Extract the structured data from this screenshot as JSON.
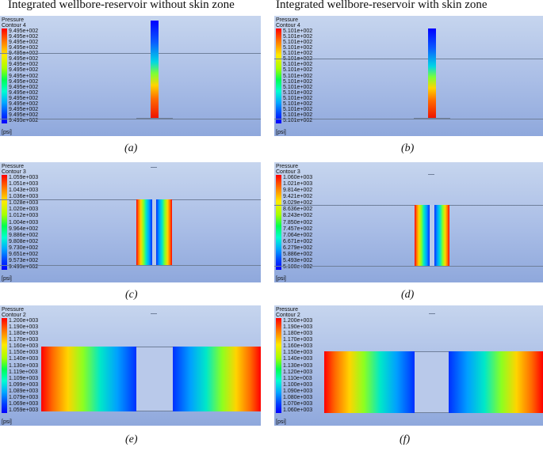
{
  "columns": [
    "Integrated wellbore-reservoir without skin zone",
    "Integrated wellbore-reservoir with skin zone"
  ],
  "panels": [
    {
      "caption": "(a)",
      "title": "Pressure\nContour 4",
      "unit": "[psi]",
      "labels": [
        "9.495e+002",
        "9.495e+002",
        "9.495e+002",
        "9.495e+002",
        "9.495e+002",
        "9.495e+002",
        "9.495e+002",
        "9.495e+002",
        "9.495e+002",
        "9.495e+002",
        "9.495e+002",
        "9.495e+002",
        "9.495e+002",
        "9.495e+002",
        "9.495e+002",
        "9.495e+002",
        "9.495e+002"
      ]
    },
    {
      "caption": "(b)",
      "title": "Pressure\nContour 4",
      "unit": "[psi]",
      "labels": [
        "5.101e+002",
        "5.101e+002",
        "5.101e+002",
        "5.101e+002",
        "5.101e+002",
        "5.101e+002",
        "5.101e+002",
        "5.101e+002",
        "5.101e+002",
        "5.101e+002",
        "5.101e+002",
        "5.101e+002",
        "5.101e+002",
        "5.101e+002",
        "5.101e+002",
        "5.101e+002",
        "5.101e+002"
      ]
    },
    {
      "caption": "(c)",
      "title": "Pressure\nContour 3",
      "unit": "[psi]",
      "labels": [
        "1.059e+003",
        "1.051e+003",
        "1.043e+003",
        "1.036e+003",
        "1.028e+003",
        "1.020e+003",
        "1.012e+003",
        "1.004e+003",
        "9.964e+002",
        "9.886e+002",
        "9.808e+002",
        "9.730e+002",
        "9.651e+002",
        "9.573e+002",
        "9.495e+002"
      ]
    },
    {
      "caption": "(d)",
      "title": "Pressure\nContour 3",
      "unit": "[psi]",
      "labels": [
        "1.060e+003",
        "1.021e+003",
        "9.814e+002",
        "9.421e+002",
        "9.029e+002",
        "8.636e+002",
        "8.243e+002",
        "7.850e+002",
        "7.457e+002",
        "7.064e+002",
        "6.671e+002",
        "6.279e+002",
        "5.886e+002",
        "5.493e+002",
        "5.100e+002"
      ]
    },
    {
      "caption": "(e)",
      "title": "Pressure\nContour 2",
      "unit": "[psi]",
      "labels": [
        "1.200e+003",
        "1.190e+003",
        "1.180e+003",
        "1.170e+003",
        "1.160e+003",
        "1.150e+003",
        "1.140e+003",
        "1.130e+003",
        "1.119e+003",
        "1.109e+003",
        "1.099e+003",
        "1.089e+003",
        "1.079e+003",
        "1.069e+003",
        "1.059e+003"
      ]
    },
    {
      "caption": "(f)",
      "title": "Pressure\nContour 2",
      "unit": "[psi]",
      "labels": [
        "1.200e+003",
        "1.190e+003",
        "1.180e+003",
        "1.170e+003",
        "1.160e+003",
        "1.150e+003",
        "1.140e+003",
        "1.130e+003",
        "1.120e+003",
        "1.110e+003",
        "1.100e+003",
        "1.090e+003",
        "1.080e+003",
        "1.070e+003",
        "1.060e+003"
      ]
    }
  ]
}
